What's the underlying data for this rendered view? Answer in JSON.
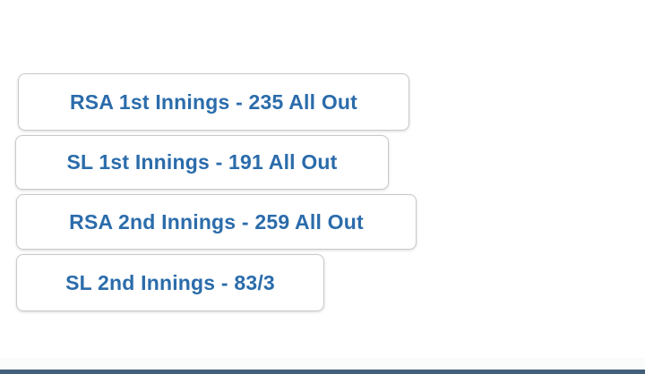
{
  "page": {
    "background_color": "#ffffff"
  },
  "scorecard": {
    "text_color": "#2b6cab",
    "border_color": "#c9c9c9",
    "buttons": [
      {
        "label": "RSA 1st Innings - 235 All Out"
      },
      {
        "label": "SL 1st Innings - 191 All Out"
      },
      {
        "label": "RSA 2nd Innings - 259 All Out"
      },
      {
        "label": "SL 2nd Innings - 83/3"
      }
    ]
  },
  "footer": {
    "bar_color": "#42607a"
  }
}
